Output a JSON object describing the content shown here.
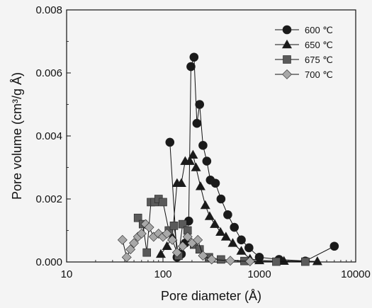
{
  "chart_data": {
    "type": "line",
    "xlabel": "Pore diameter (Å)",
    "ylabel": "Pore volume (cm³/g Å)",
    "xscale": "log",
    "xlim": [
      10,
      10000
    ],
    "ylim": [
      0,
      0.008
    ],
    "x_ticks": [
      "10",
      "100",
      "1000",
      "10000"
    ],
    "y_ticks": [
      "0.000",
      "0.002",
      "0.004",
      "0.006",
      "0.008"
    ],
    "legend_position": "top-right",
    "grid": false,
    "series": [
      {
        "name": "600 ℃",
        "marker": "circle",
        "color": "#1a1a1a",
        "points": [
          [
            118,
            0.0038
          ],
          [
            140,
            0.00015
          ],
          [
            155,
            0.00025
          ],
          [
            170,
            0.0006
          ],
          [
            185,
            0.0013
          ],
          [
            195,
            0.0062
          ],
          [
            210,
            0.0065
          ],
          [
            225,
            0.0044
          ],
          [
            240,
            0.005
          ],
          [
            260,
            0.0037
          ],
          [
            285,
            0.0032
          ],
          [
            310,
            0.0026
          ],
          [
            350,
            0.0025
          ],
          [
            400,
            0.002
          ],
          [
            470,
            0.0015
          ],
          [
            550,
            0.0011
          ],
          [
            650,
            0.0007
          ],
          [
            780,
            0.00045
          ],
          [
            1000,
            0.00015
          ],
          [
            1600,
            8e-05
          ],
          [
            3000,
            3e-05
          ],
          [
            6000,
            0.0005
          ]
        ]
      },
      {
        "name": "650 ℃",
        "marker": "triangle",
        "color": "#1a1a1a",
        "points": [
          [
            95,
            0.00025
          ],
          [
            110,
            0.0005
          ],
          [
            125,
            0.0008
          ],
          [
            140,
            0.0025
          ],
          [
            155,
            0.0025
          ],
          [
            170,
            0.0032
          ],
          [
            190,
            0.0032
          ],
          [
            205,
            0.0034
          ],
          [
            220,
            0.003
          ],
          [
            245,
            0.0024
          ],
          [
            275,
            0.0018
          ],
          [
            305,
            0.00145
          ],
          [
            345,
            0.0012
          ],
          [
            395,
            0.00095
          ],
          [
            450,
            0.0008
          ],
          [
            530,
            0.0006
          ],
          [
            650,
            0.00035
          ],
          [
            800,
            0.0001
          ],
          [
            1000,
            5e-05
          ],
          [
            1800,
            3e-05
          ],
          [
            4000,
            2e-05
          ]
        ]
      },
      {
        "name": "675 ℃",
        "marker": "square",
        "color": "#5a5a5a",
        "points": [
          [
            55,
            0.0014
          ],
          [
            62,
            0.0012
          ],
          [
            68,
            0.0003
          ],
          [
            75,
            0.0019
          ],
          [
            82,
            0.0019
          ],
          [
            90,
            0.002
          ],
          [
            100,
            0.0019
          ],
          [
            115,
            0.001
          ],
          [
            130,
            0.00115
          ],
          [
            145,
            0.0002
          ],
          [
            160,
            0.0012
          ],
          [
            180,
            0.001
          ],
          [
            210,
            0.00055
          ],
          [
            240,
            0.0004
          ],
          [
            300,
            0.00015
          ],
          [
            400,
            8e-05
          ],
          [
            700,
            3e-05
          ],
          [
            1500,
            1e-05
          ],
          [
            3000,
            1e-05
          ]
        ]
      },
      {
        "name": "700 ℃",
        "marker": "diamond",
        "color": "#a8a8a8",
        "points": [
          [
            38,
            0.0007
          ],
          [
            42,
            0.00015
          ],
          [
            46,
            0.0004
          ],
          [
            50,
            0.0006
          ],
          [
            55,
            0.0008
          ],
          [
            60,
            0.0009
          ],
          [
            66,
            0.0012
          ],
          [
            72,
            0.0011
          ],
          [
            80,
            0.0008
          ],
          [
            90,
            0.0009
          ],
          [
            100,
            0.0008
          ],
          [
            110,
            0.0009
          ],
          [
            125,
            0.0007
          ],
          [
            140,
            0.0003
          ],
          [
            160,
            0.0005
          ],
          [
            180,
            0.0008
          ],
          [
            200,
            0.0006
          ],
          [
            230,
            0.0007
          ],
          [
            260,
            0.0002
          ],
          [
            320,
            8e-05
          ],
          [
            500,
            4e-05
          ],
          [
            800,
            2e-05
          ]
        ]
      }
    ]
  }
}
